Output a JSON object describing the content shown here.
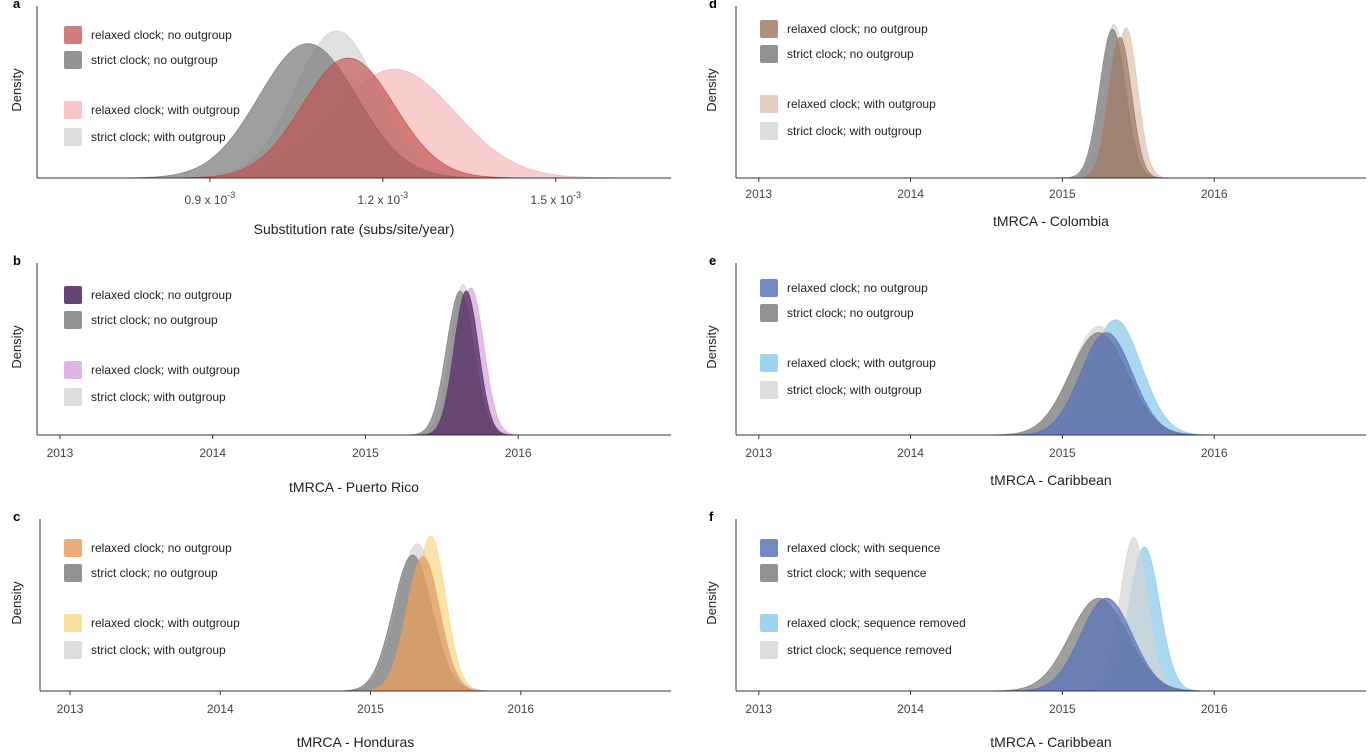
{
  "chart_data": [
    {
      "id": "a",
      "type": "area",
      "panel_label": "a",
      "xlabel": "Substitution rate (subs/site/year)",
      "ylabel": "Density",
      "xlim": [
        0.0006,
        0.0017
      ],
      "ticks": [
        {
          "value": 0.0009,
          "base": "0.9 x 10",
          "exp": "-3"
        },
        {
          "value": 0.0012,
          "base": "1.2 x 10",
          "exp": "-3"
        },
        {
          "value": 0.0015,
          "base": "1.5 x 10",
          "exp": "-3"
        }
      ],
      "legend_position": "top-left",
      "series": [
        {
          "name": "relaxed clock; with outgroup",
          "color": "#f7b8b8",
          "opacity": 0.7,
          "mean": 0.00122,
          "sd": 0.000105,
          "peak": 0.68
        },
        {
          "name": "strict clock; with outgroup",
          "color": "#d4d4d4",
          "opacity": 0.7,
          "mean": 0.00112,
          "sd": 7.2e-05,
          "peak": 0.92
        },
        {
          "name": "strict clock; no outgroup",
          "color": "#7f7f7f",
          "opacity": 0.75,
          "mean": 0.00107,
          "sd": 8.5e-05,
          "peak": 0.84
        },
        {
          "name": "relaxed clock; no outgroup",
          "color": "#c0504d",
          "opacity": 0.65,
          "mean": 0.00114,
          "sd": 8e-05,
          "peak": 0.75
        }
      ],
      "legend_order": [
        3,
        2,
        0,
        1
      ]
    },
    {
      "id": "b",
      "type": "area",
      "panel_label": "b",
      "xlabel": "tMRCA - Puerto Rico",
      "ylabel": "Density",
      "xlim": [
        2012.85,
        2017.0
      ],
      "ticks": [
        {
          "value": 2013,
          "label": "2013"
        },
        {
          "value": 2014,
          "label": "2014"
        },
        {
          "value": 2015,
          "label": "2015"
        },
        {
          "value": 2016,
          "label": "2016"
        }
      ],
      "legend_position": "top-left",
      "series": [
        {
          "name": "relaxed clock; with outgroup",
          "color": "#d9a6e0",
          "opacity": 0.75,
          "mean": 2015.69,
          "sd": 0.085,
          "peak": 0.92
        },
        {
          "name": "strict clock; with outgroup",
          "color": "#d4d4d4",
          "opacity": 0.7,
          "mean": 2015.64,
          "sd": 0.085,
          "peak": 0.94
        },
        {
          "name": "strict clock; no outgroup",
          "color": "#7f7f7f",
          "opacity": 0.75,
          "mean": 2015.62,
          "sd": 0.09,
          "peak": 0.9
        },
        {
          "name": "relaxed clock; no outgroup",
          "color": "#5e3a6e",
          "opacity": 0.85,
          "mean": 2015.66,
          "sd": 0.08,
          "peak": 0.9
        }
      ],
      "legend_order": [
        3,
        2,
        0,
        1
      ]
    },
    {
      "id": "c",
      "type": "area",
      "panel_label": "c",
      "xlabel": "tMRCA - Honduras",
      "ylabel": "Density",
      "xlim": [
        2012.8,
        2017.0
      ],
      "ticks": [
        {
          "value": 2013,
          "label": "2013"
        },
        {
          "value": 2014,
          "label": "2014"
        },
        {
          "value": 2015,
          "label": "2015"
        },
        {
          "value": 2016,
          "label": "2016"
        }
      ],
      "legend_position": "top-left",
      "series": [
        {
          "name": "relaxed clock; with outgroup",
          "color": "#f7d98c",
          "opacity": 0.75,
          "mean": 2015.4,
          "sd": 0.1,
          "peak": 0.97
        },
        {
          "name": "strict clock; with outgroup",
          "color": "#d4d4d4",
          "opacity": 0.7,
          "mean": 2015.31,
          "sd": 0.13,
          "peak": 0.92
        },
        {
          "name": "strict clock; no outgroup",
          "color": "#7f7f7f",
          "opacity": 0.75,
          "mean": 2015.28,
          "sd": 0.13,
          "peak": 0.85
        },
        {
          "name": "relaxed clock; no outgroup",
          "color": "#e8a060",
          "opacity": 0.75,
          "mean": 2015.35,
          "sd": 0.11,
          "peak": 0.84
        }
      ],
      "legend_order": [
        3,
        2,
        0,
        1
      ]
    },
    {
      "id": "d",
      "type": "area",
      "panel_label": "d",
      "xlabel": "tMRCA - Colombia",
      "ylabel": "Density",
      "xlim": [
        2012.85,
        2017.0
      ],
      "ticks": [
        {
          "value": 2013,
          "label": "2013"
        },
        {
          "value": 2014,
          "label": "2014"
        },
        {
          "value": 2015,
          "label": "2015"
        },
        {
          "value": 2016,
          "label": "2016"
        }
      ],
      "legend_position": "top-left",
      "series": [
        {
          "name": "relaxed clock; with outgroup",
          "color": "#e0c4b4",
          "opacity": 0.75,
          "mean": 2015.42,
          "sd": 0.075,
          "peak": 0.94
        },
        {
          "name": "strict clock; with outgroup",
          "color": "#d4d4d4",
          "opacity": 0.7,
          "mean": 2015.34,
          "sd": 0.08,
          "peak": 0.96
        },
        {
          "name": "strict clock; no outgroup",
          "color": "#7f7f7f",
          "opacity": 0.75,
          "mean": 2015.33,
          "sd": 0.085,
          "peak": 0.93
        },
        {
          "name": "relaxed clock; no outgroup",
          "color": "#a07c68",
          "opacity": 0.75,
          "mean": 2015.38,
          "sd": 0.075,
          "peak": 0.88
        }
      ],
      "legend_order": [
        3,
        2,
        0,
        1
      ]
    },
    {
      "id": "e",
      "type": "area",
      "panel_label": "e",
      "xlabel": "tMRCA - Caribbean",
      "ylabel": "Density",
      "xlim": [
        2012.85,
        2017.0
      ],
      "ticks": [
        {
          "value": 2013,
          "label": "2013"
        },
        {
          "value": 2014,
          "label": "2014"
        },
        {
          "value": 2015,
          "label": "2015"
        },
        {
          "value": 2016,
          "label": "2016"
        }
      ],
      "legend_position": "top-left",
      "series": [
        {
          "name": "relaxed clock; with outgroup",
          "color": "#8ecbe8",
          "opacity": 0.75,
          "mean": 2015.35,
          "sd": 0.17,
          "peak": 0.72
        },
        {
          "name": "strict clock; with outgroup",
          "color": "#d4d4d4",
          "opacity": 0.7,
          "mean": 2015.24,
          "sd": 0.18,
          "peak": 0.68
        },
        {
          "name": "strict clock; no outgroup",
          "color": "#7f7f7f",
          "opacity": 0.75,
          "mean": 2015.24,
          "sd": 0.19,
          "peak": 0.64
        },
        {
          "name": "relaxed clock; no outgroup",
          "color": "#5a74b8",
          "opacity": 0.75,
          "mean": 2015.29,
          "sd": 0.17,
          "peak": 0.64
        }
      ],
      "legend_order": [
        3,
        2,
        0,
        1
      ]
    },
    {
      "id": "f",
      "type": "area",
      "panel_label": "f",
      "xlabel": "tMRCA - Caribbean",
      "ylabel": "Density",
      "xlim": [
        2012.85,
        2017.0
      ],
      "ticks": [
        {
          "value": 2013,
          "label": "2013"
        },
        {
          "value": 2014,
          "label": "2014"
        },
        {
          "value": 2015,
          "label": "2015"
        },
        {
          "value": 2016,
          "label": "2016"
        }
      ],
      "legend_position": "top-left",
      "series": [
        {
          "name": "relaxed clock; sequence removed",
          "color": "#8ecbe8",
          "opacity": 0.75,
          "mean": 2015.54,
          "sd": 0.1,
          "peak": 0.9
        },
        {
          "name": "strict clock; sequence removed",
          "color": "#d4d4d4",
          "opacity": 0.7,
          "mean": 2015.47,
          "sd": 0.09,
          "peak": 0.96
        },
        {
          "name": "strict clock; with sequence",
          "color": "#7f7f7f",
          "opacity": 0.75,
          "mean": 2015.24,
          "sd": 0.19,
          "peak": 0.58
        },
        {
          "name": "relaxed clock; with sequence",
          "color": "#5a74b8",
          "opacity": 0.75,
          "mean": 2015.29,
          "sd": 0.17,
          "peak": 0.58
        }
      ],
      "legend_order": [
        3,
        2,
        0,
        1
      ]
    }
  ]
}
